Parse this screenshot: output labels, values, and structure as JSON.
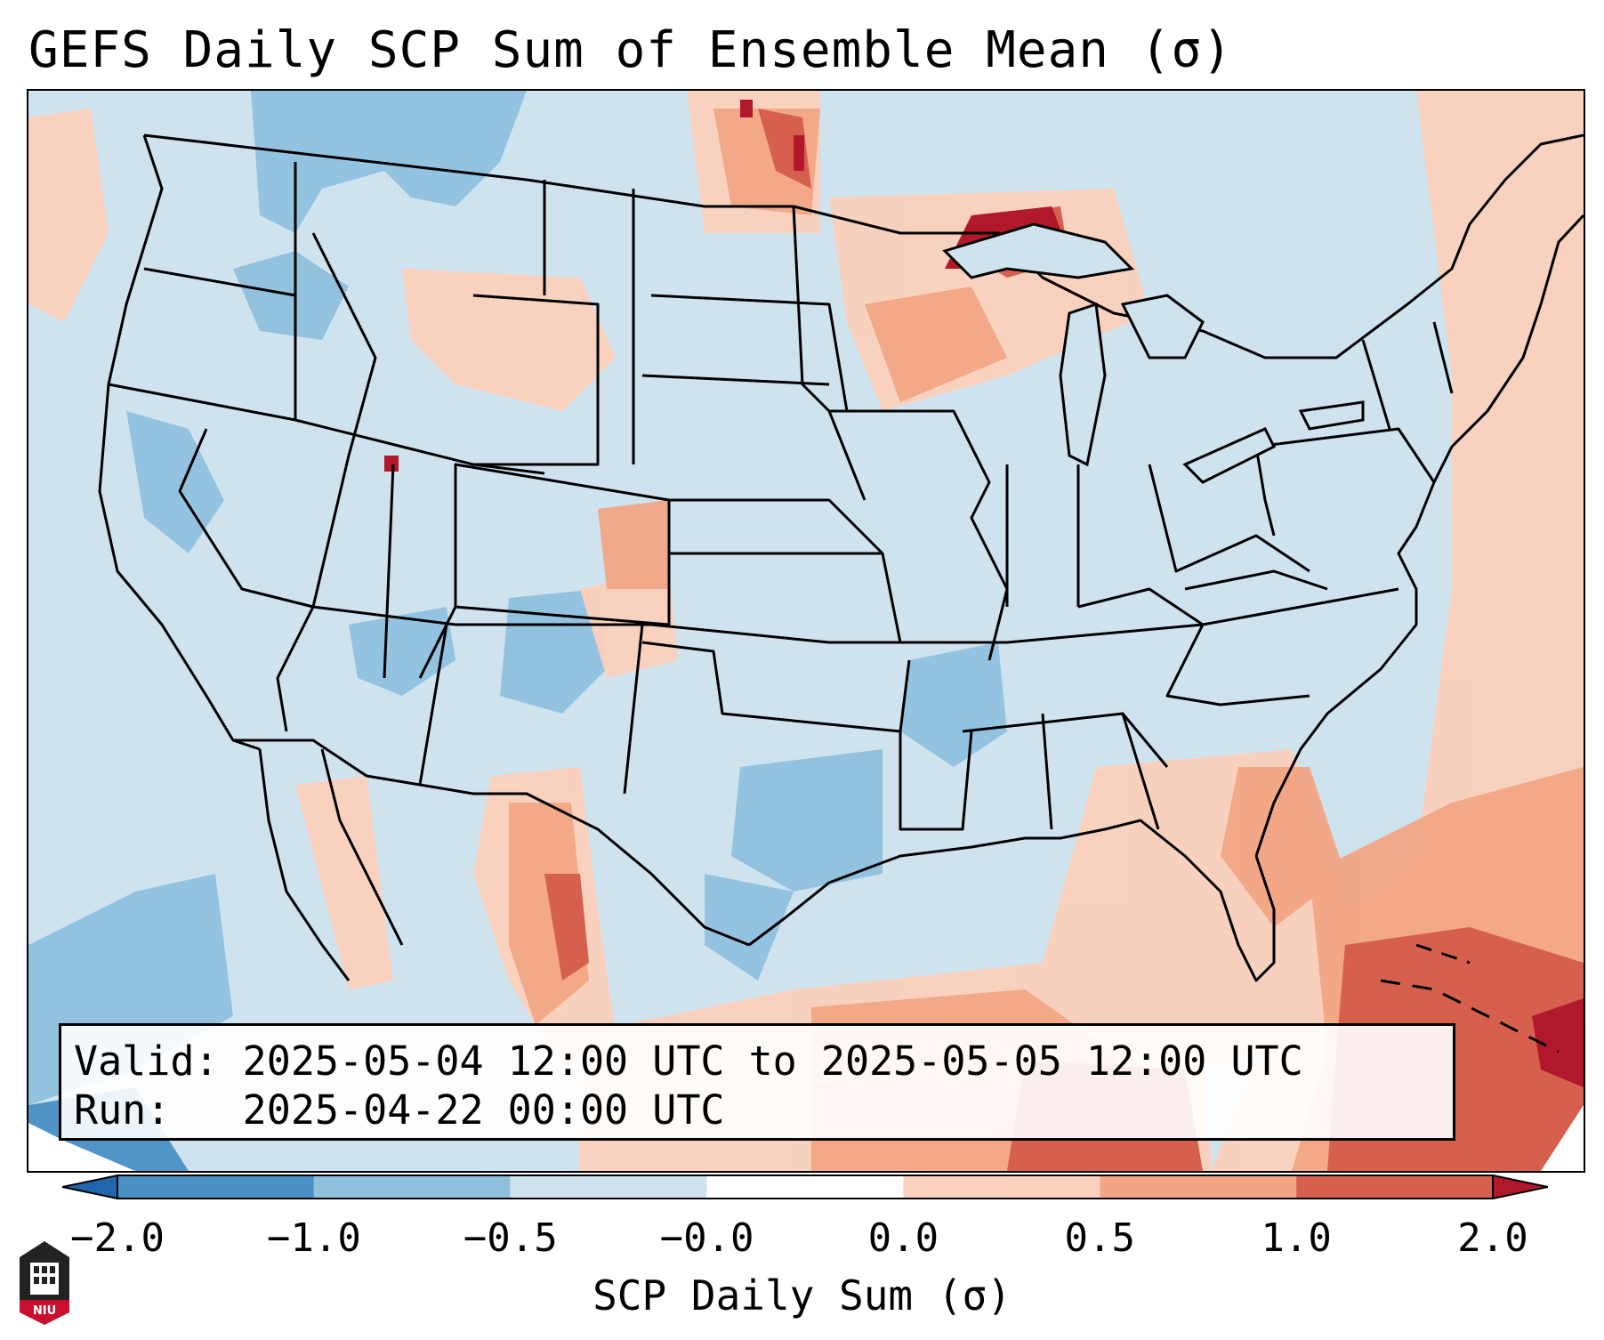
{
  "title": "GEFS Daily SCP Sum of Ensemble Mean (σ)",
  "info": {
    "valid_label": "Valid:",
    "valid_value": "2025-05-04 12:00 UTC to 2025-05-05 12:00 UTC",
    "run_label": "Run:",
    "run_value": "2025-04-22 00:00 UTC"
  },
  "colorbar": {
    "label": "SCP Daily Sum (σ)",
    "ticks": [
      "−2.0",
      "−1.0",
      "−0.5",
      "−0.0",
      "0.0",
      "0.5",
      "1.0",
      "2.0"
    ],
    "bin_colors": [
      "#4a90c4",
      "#8fc1de",
      "#cfe3ef",
      "#ffffff",
      "#fbd0bc",
      "#f2a585",
      "#d6604d"
    ],
    "under_color": "#2166ac",
    "over_color": "#b2182b"
  },
  "map": {
    "region": "Contiguous United States",
    "field": "SCP daily sum anomaly",
    "basemap": "state boundaries and coastlines"
  },
  "logo": {
    "text": "NIU",
    "icon": "niu-logo-icon"
  }
}
